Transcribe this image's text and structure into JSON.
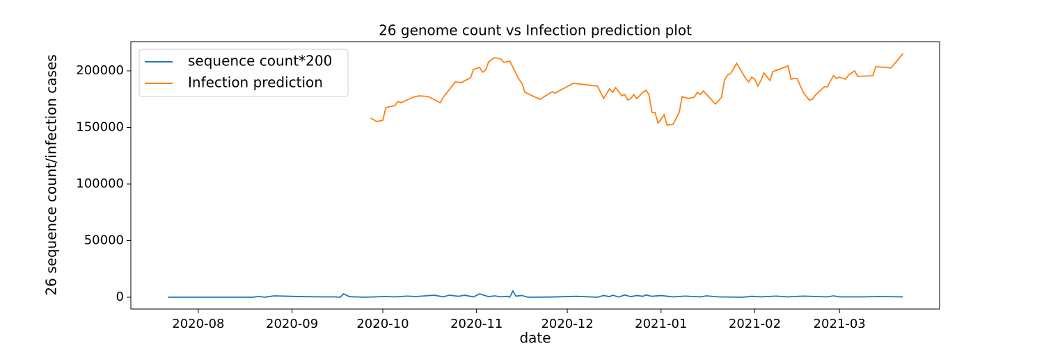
{
  "chart_data": {
    "type": "line",
    "title": "26 genome count vs Infection prediction plot",
    "x_label": "date",
    "y_label": "26 sequence count/infection cases",
    "xlim": [
      18452.7,
      18720.1
    ],
    "xticks": [
      {
        "value": 18475,
        "label": "2020-08"
      },
      {
        "value": 18506,
        "label": "2020-09"
      },
      {
        "value": 18536,
        "label": "2020-10"
      },
      {
        "value": 18567,
        "label": "2020-11"
      },
      {
        "value": 18597,
        "label": "2020-12"
      },
      {
        "value": 18628,
        "label": "2021-01"
      },
      {
        "value": 18659,
        "label": "2021-02"
      },
      {
        "value": 18687,
        "label": "2021-03"
      }
    ],
    "ylim": [
      -10430,
      225770
    ],
    "yticks": [
      0,
      50000,
      100000,
      150000,
      200000
    ],
    "legend": "upper left",
    "series": [
      {
        "name": "sequence count*200",
        "color": "#1f77b4",
        "x": [
          18465,
          18480,
          18493,
          18495,
          18497,
          18500,
          18510,
          18516,
          18520,
          18522,
          18523,
          18525,
          18530,
          18537,
          18540,
          18544,
          18547,
          18549,
          18553,
          18556,
          18558,
          18561,
          18563,
          18566,
          18568,
          18571,
          18573,
          18575,
          18577,
          18578,
          18579,
          18580,
          18582,
          18584,
          18592,
          18600,
          18607,
          18609,
          18611,
          18612,
          18614,
          18616,
          18618,
          18620,
          18622,
          18623,
          18625,
          18628,
          18632,
          18636,
          18641,
          18643,
          18647,
          18655,
          18658,
          18661,
          18666,
          18670,
          18675,
          18683,
          18685,
          18687,
          18695,
          18700,
          18708
        ],
        "values": [
          0,
          0,
          0,
          700,
          0,
          1200,
          500,
          300,
          300,
          0,
          3000,
          500,
          0,
          600,
          300,
          1000,
          600,
          1000,
          1800,
          300,
          1800,
          800,
          1800,
          300,
          3000,
          500,
          1200,
          300,
          800,
          100,
          5500,
          1000,
          1500,
          0,
          200,
          800,
          0,
          1500,
          500,
          1800,
          200,
          2000,
          500,
          1500,
          800,
          2000,
          800,
          1500,
          300,
          1000,
          300,
          1200,
          300,
          0,
          800,
          300,
          1000,
          300,
          1000,
          300,
          1200,
          300,
          300,
          600,
          300
        ]
      },
      {
        "name": "Infection prediction",
        "color": "#ff7f0e",
        "x": [
          18532,
          18534,
          18536,
          18537,
          18540,
          18541,
          18542,
          18546,
          18548,
          18551,
          18555,
          18556,
          18560,
          18562,
          18565,
          18566,
          18568,
          18569,
          18570,
          18571,
          18573,
          18575,
          18576,
          18578,
          18581,
          18582,
          18583,
          18588,
          18592,
          18593,
          18599,
          18607,
          18608,
          18609,
          18611,
          18612,
          18613,
          18615,
          18616,
          18617,
          18618,
          18619,
          18620,
          18622,
          18623,
          18624,
          18625,
          18626,
          18627,
          18628,
          18629,
          18630,
          18632,
          18634,
          18635,
          18637,
          18639,
          18640,
          18641,
          18642,
          18646,
          18648,
          18649,
          18650,
          18651,
          18653,
          18656,
          18657,
          18658,
          18659,
          18660,
          18661,
          18662,
          18664,
          18665,
          18670,
          18671,
          18672,
          18673,
          18674,
          18675,
          18677,
          18678,
          18679,
          18682,
          18683,
          18684,
          18685,
          18686,
          18687,
          18689,
          18690,
          18692,
          18693,
          18698,
          18699,
          18704,
          18708
        ],
        "values": [
          158300,
          155200,
          156400,
          167500,
          169300,
          173000,
          171800,
          176700,
          177900,
          177300,
          171800,
          176700,
          190200,
          189600,
          193900,
          201200,
          203100,
          198800,
          200600,
          208000,
          211700,
          210400,
          207400,
          208600,
          192600,
          189000,
          181000,
          174800,
          181600,
          180400,
          189000,
          186500,
          181000,
          175500,
          184100,
          181000,
          185200,
          177900,
          179100,
          174200,
          175500,
          179100,
          175500,
          181000,
          182800,
          179100,
          163200,
          163200,
          154000,
          157100,
          161300,
          152100,
          152800,
          163200,
          177300,
          175500,
          176700,
          181000,
          179100,
          182200,
          170600,
          176700,
          192000,
          196300,
          197500,
          206700,
          193200,
          190200,
          194500,
          192600,
          186500,
          191400,
          198200,
          191400,
          199400,
          204300,
          192600,
          193200,
          193200,
          187100,
          181000,
          174200,
          174800,
          178500,
          185900,
          185900,
          190800,
          195700,
          193200,
          194500,
          192600,
          196300,
          200000,
          195100,
          195700,
          203700,
          202500,
          215300
        ]
      }
    ]
  }
}
